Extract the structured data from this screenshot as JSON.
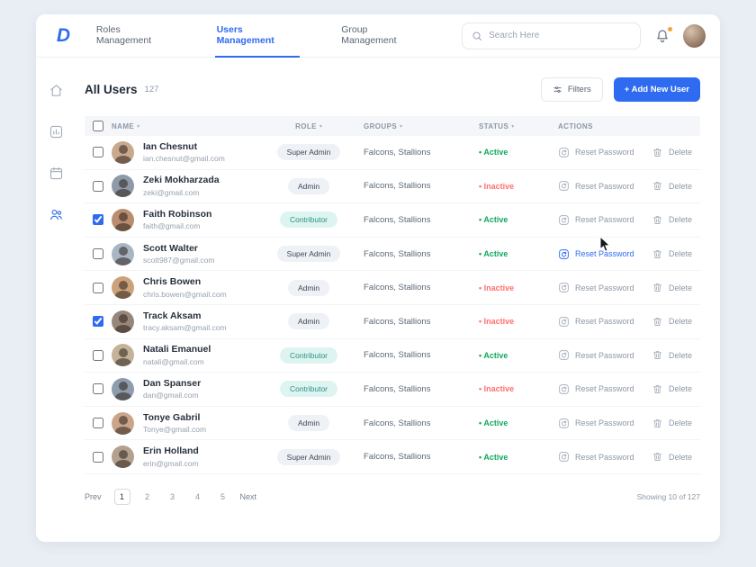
{
  "brand": {
    "logo": "D",
    "accent": "#2e6bf0"
  },
  "topbar": {
    "tabs": [
      {
        "label": "Roles Management",
        "active": false
      },
      {
        "label": "Users Management",
        "active": true
      },
      {
        "label": "Group Management",
        "active": false
      }
    ],
    "search_placeholder": "Search Here"
  },
  "sidebar": {
    "items": [
      {
        "icon": "home",
        "active": false
      },
      {
        "icon": "stats",
        "active": false
      },
      {
        "icon": "calendar",
        "active": false
      },
      {
        "icon": "users",
        "active": true
      }
    ]
  },
  "header": {
    "title": "All Users",
    "count": "127",
    "filters_label": "Filters",
    "add_user_label": "+ Add New User"
  },
  "table": {
    "columns": [
      {
        "label": "NAME",
        "sortable": true
      },
      {
        "label": "ROLE",
        "sortable": true
      },
      {
        "label": "GROUPS",
        "sortable": true
      },
      {
        "label": "STATUS",
        "sortable": true
      },
      {
        "label": "ACTIONS",
        "sortable": false
      }
    ],
    "reset_label": "Reset Password",
    "delete_label": "Delete",
    "role_styles": {
      "Super Admin": {
        "bg": "#eef1f5",
        "fg": "#3f4a57"
      },
      "Admin": {
        "bg": "#eef1f5",
        "fg": "#3f4a57"
      },
      "Contributor": {
        "bg": "#def4f0",
        "fg": "#2b9086"
      }
    },
    "status_colors": {
      "Active": "#0fa95c",
      "Inactive": "#ff6f6f"
    },
    "rows": [
      {
        "name": "Ian Chesnut",
        "email": "ian.chesnut@gmail.com",
        "role": "Super Admin",
        "groups": "Falcons, Stallions",
        "status": "Active",
        "checked": false,
        "reset_highlighted": false
      },
      {
        "name": "Zeki Mokharzada",
        "email": "zeki@gmail.com",
        "role": "Admin",
        "groups": "Falcons, Stallions",
        "status": "Inactive",
        "checked": false,
        "reset_highlighted": false
      },
      {
        "name": "Faith Robinson",
        "email": "faith@gmail.com",
        "role": "Contributor",
        "groups": "Falcons, Stallions",
        "status": "Active",
        "checked": true,
        "reset_highlighted": false
      },
      {
        "name": "Scott Walter",
        "email": "scott987@gmail.com",
        "role": "Super Admin",
        "groups": "Falcons, Stallions",
        "status": "Active",
        "checked": false,
        "reset_highlighted": true
      },
      {
        "name": "Chris Bowen",
        "email": "chris.bowen@gmail.com",
        "role": "Admin",
        "groups": "Falcons, Stallions",
        "status": "Inactive",
        "checked": false,
        "reset_highlighted": false
      },
      {
        "name": "Track Aksam",
        "email": "tracy.aksam@gmail.com",
        "role": "Admin",
        "groups": "Falcons, Stallions",
        "status": "Inactive",
        "checked": true,
        "reset_highlighted": false
      },
      {
        "name": "Natali Emanuel",
        "email": "natali@gmail.com",
        "role": "Contributor",
        "groups": "Falcons, Stallions",
        "status": "Active",
        "checked": false,
        "reset_highlighted": false
      },
      {
        "name": "Dan Spanser",
        "email": "dan@gmail.com",
        "role": "Contributor",
        "groups": "Falcons, Stallions",
        "status": "Inactive",
        "checked": false,
        "reset_highlighted": false
      },
      {
        "name": "Tonye Gabril",
        "email": "Tonye@gmail.com",
        "role": "Admin",
        "groups": "Falcons, Stallions",
        "status": "Active",
        "checked": false,
        "reset_highlighted": false
      },
      {
        "name": "Erin Holland",
        "email": "erin@gmail.com",
        "role": "Super Admin",
        "groups": "Falcons, Stallions",
        "status": "Active",
        "checked": false,
        "reset_highlighted": false
      }
    ]
  },
  "pagination": {
    "prev_label": "Prev",
    "pages": [
      "1",
      "2",
      "3",
      "4",
      "5"
    ],
    "current": "1",
    "next_label": "Next",
    "summary": "Showing 10 of 127"
  }
}
